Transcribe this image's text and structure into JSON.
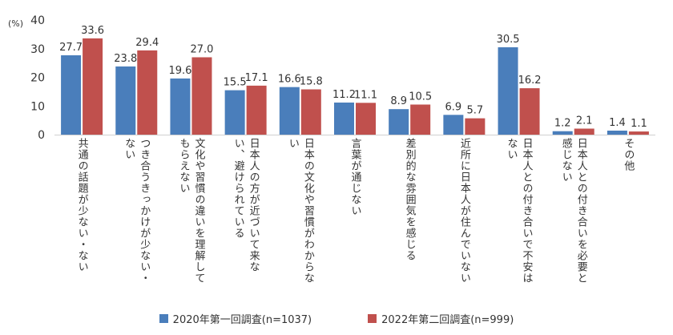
{
  "chart_data": {
    "type": "bar",
    "unit_label": "(%)",
    "ylim": [
      0,
      40
    ],
    "yticks": [
      0,
      10,
      20,
      30,
      40
    ],
    "grid": false,
    "legend_position": "bottom",
    "categories": [
      "共通の話題が少ない・ない",
      "つき合うきっかけが少ない・ない",
      "文化や習慣の違いを理解してもらえない",
      "日本人の方が近づいて来ない、避けられている",
      "日本の文化や習慣がわからない",
      "言葉が通じない",
      "差別的な雰囲気を感じる",
      "近所に日本人が住んでいない",
      "日本人との付き合いで不安はない",
      "日本人との付き合いを必要と感じない",
      "その他"
    ],
    "category_display": [
      "共通の話題が少ない・ない",
      "つき合うきっかけが少ない・\nない",
      "文化や習慣の違いを理解して\nもらえない",
      "日本人の方が近づいて来な\nい、避けられている",
      "日本の文化や習慣がわからな\nい",
      "言葉が通じない",
      "差別的な雰囲気を感じる",
      "近所に日本人が住んでいない",
      "日本人との付き合いで不安は\nない",
      "日本人との付き合いを必要と\n感じない",
      "その他"
    ],
    "series": [
      {
        "name": "2020年第一回調査(n=1037)",
        "color": "#4a7ebb",
        "values": [
          27.7,
          23.8,
          19.6,
          15.5,
          16.6,
          11.2,
          8.9,
          6.9,
          30.5,
          1.2,
          1.4
        ]
      },
      {
        "name": "2022年第二回調査(n=999)",
        "color": "#c0504d",
        "values": [
          33.6,
          29.4,
          27.0,
          17.1,
          15.8,
          11.1,
          10.5,
          5.7,
          16.2,
          2.1,
          1.1
        ]
      }
    ]
  }
}
